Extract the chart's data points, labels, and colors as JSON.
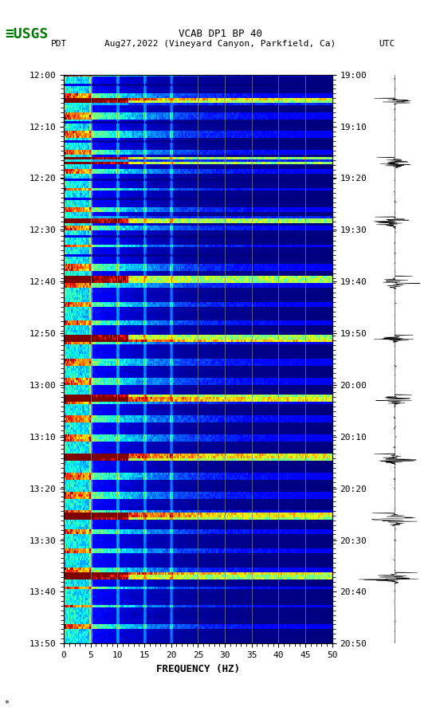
{
  "title_line1": "VCAB DP1 BP 40",
  "title_line2_left": "PDT",
  "title_line2_mid": "Aug27,2022 (Vineyard Canyon, Parkfield, Ca)",
  "title_line2_right": "UTC",
  "xlabel": "FREQUENCY (HZ)",
  "freq_min": 0,
  "freq_max": 50,
  "freq_ticks": [
    0,
    5,
    10,
    15,
    20,
    25,
    30,
    35,
    40,
    45,
    50
  ],
  "time_labels_left": [
    "12:00",
    "12:10",
    "12:20",
    "12:30",
    "12:40",
    "12:50",
    "13:00",
    "13:10",
    "13:20",
    "13:30",
    "13:40",
    "13:50"
  ],
  "time_labels_right": [
    "19:00",
    "19:10",
    "19:20",
    "19:30",
    "19:40",
    "19:50",
    "20:00",
    "20:10",
    "20:20",
    "20:30",
    "20:40",
    "20:50"
  ],
  "n_time_steps": 240,
  "n_freq_bins": 250,
  "background_color": "#ffffff",
  "spectrogram_colormap": "jet",
  "vertical_lines_freq": [
    5,
    10,
    15,
    20,
    25,
    30,
    35,
    40,
    45
  ],
  "logo_color": "#007700",
  "watermark": "*"
}
